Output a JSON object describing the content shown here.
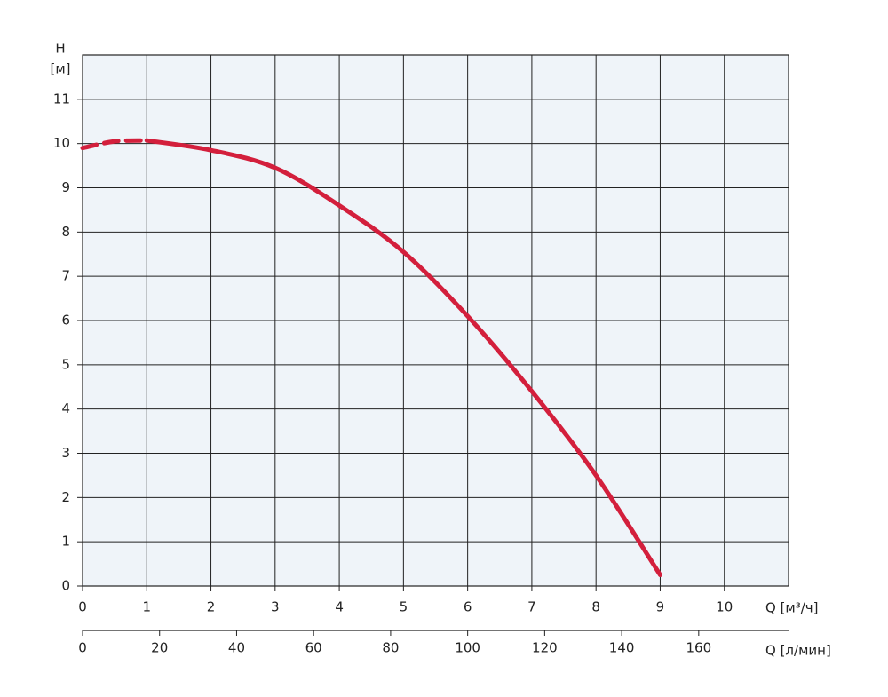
{
  "chart_data": {
    "type": "line",
    "y_label": "H",
    "y_unit": "[м]",
    "x_label": "Q [м³/ч]",
    "x2_label": "Q [л/мин]",
    "x": [
      0,
      0.5,
      1,
      2,
      3,
      4,
      5,
      6,
      7,
      8,
      9
    ],
    "series": [
      {
        "color": "#d31f3c",
        "dashed": true,
        "values": [
          9.9,
          10.05,
          10.07,
          null,
          null,
          null,
          null,
          null,
          null,
          null,
          null
        ]
      },
      {
        "color": "#d31f3c",
        "dashed": false,
        "values": [
          null,
          null,
          10.07,
          9.85,
          9.45,
          8.6,
          7.55,
          6.1,
          4.4,
          2.5,
          0.25
        ]
      }
    ],
    "xlim": [
      0,
      11
    ],
    "xticks": [
      0,
      1,
      2,
      3,
      4,
      5,
      6,
      7,
      8,
      9,
      10
    ],
    "x2lim": [
      0,
      183.33
    ],
    "x2ticks": [
      0,
      20,
      40,
      60,
      80,
      100,
      120,
      140,
      160
    ],
    "ylim": [
      0,
      12
    ],
    "yticks": [
      0,
      1,
      2,
      3,
      4,
      5,
      6,
      7,
      8,
      9,
      10,
      11
    ],
    "grid": true,
    "background": "#eff4f9"
  }
}
